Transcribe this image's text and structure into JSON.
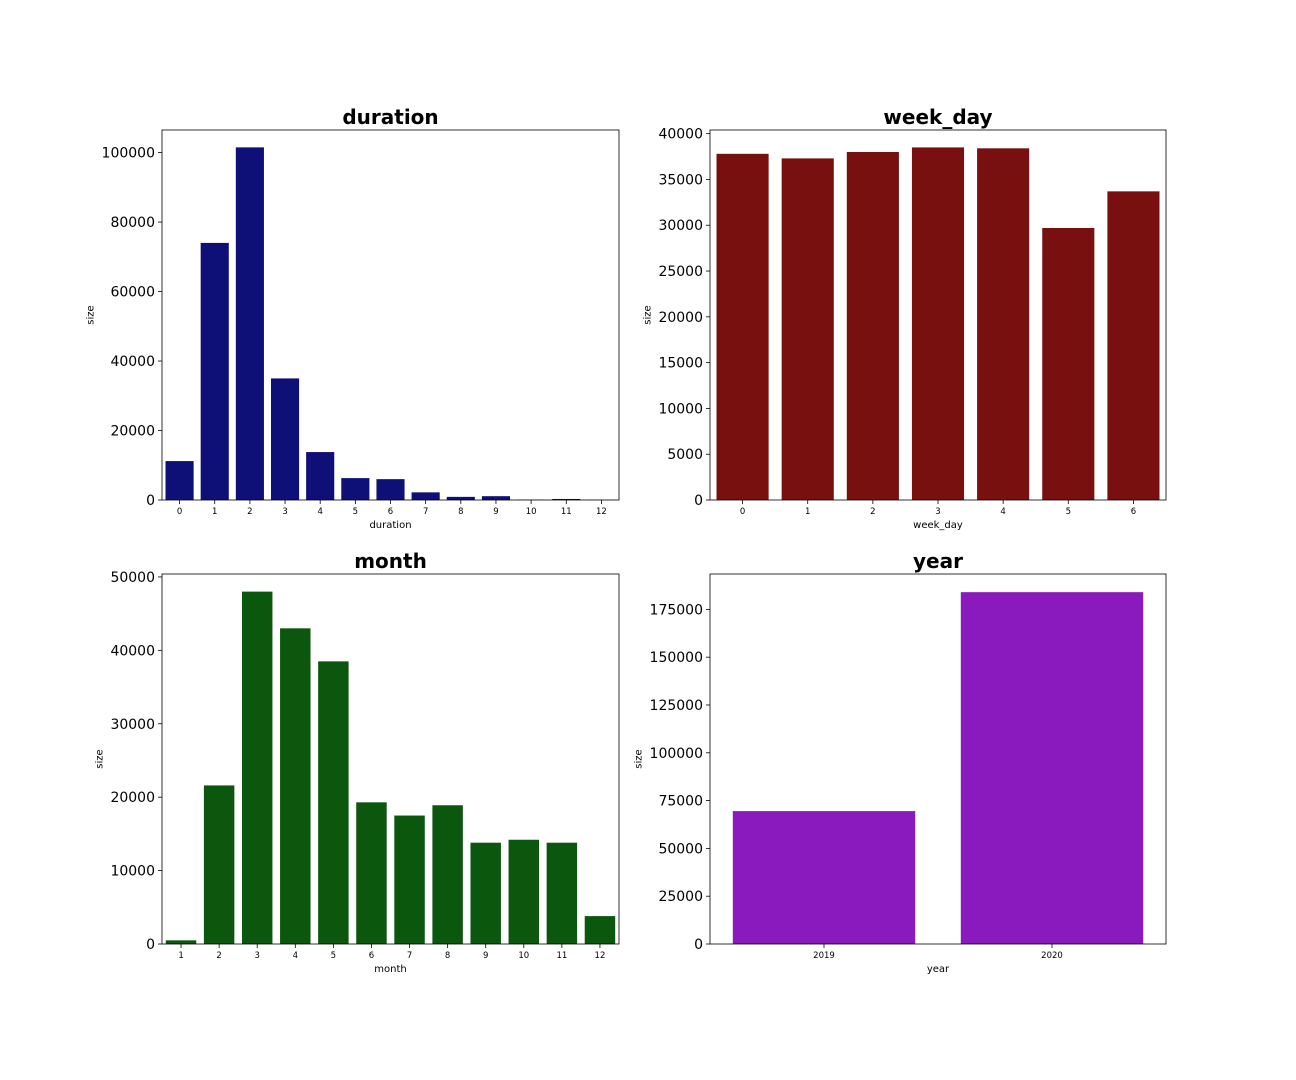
{
  "chart_data": [
    {
      "type": "bar",
      "title": "duration",
      "xlabel": "duration",
      "ylabel": "size",
      "color": "#0f0f78",
      "categories": [
        "0",
        "1",
        "2",
        "3",
        "4",
        "5",
        "6",
        "7",
        "8",
        "9",
        "10",
        "11",
        "12"
      ],
      "values": [
        11200,
        74000,
        101500,
        35000,
        13800,
        6300,
        6000,
        2200,
        900,
        1100,
        80,
        300,
        60
      ],
      "ylim": [
        0,
        106500
      ],
      "yticks": [
        0,
        20000,
        40000,
        60000,
        80000,
        100000
      ],
      "grid": false
    },
    {
      "type": "bar",
      "title": "week_day",
      "xlabel": "week_day",
      "ylabel": "size",
      "color": "#781010",
      "categories": [
        "0",
        "1",
        "2",
        "3",
        "4",
        "5",
        "6"
      ],
      "values": [
        37800,
        37300,
        38000,
        38500,
        38400,
        29700,
        33700
      ],
      "ylim": [
        0,
        40400
      ],
      "yticks": [
        0,
        5000,
        10000,
        15000,
        20000,
        25000,
        30000,
        35000,
        40000
      ],
      "grid": false
    },
    {
      "type": "bar",
      "title": "month",
      "xlabel": "month",
      "ylabel": "size",
      "color": "#0c570e",
      "categories": [
        "1",
        "2",
        "3",
        "4",
        "5",
        "6",
        "7",
        "8",
        "9",
        "10",
        "11",
        "12"
      ],
      "values": [
        500,
        21600,
        48000,
        43000,
        38500,
        19300,
        17500,
        18900,
        13800,
        14200,
        13800,
        3800
      ],
      "ylim": [
        0,
        50400
      ],
      "yticks": [
        0,
        10000,
        20000,
        30000,
        40000,
        50000
      ],
      "grid": false
    },
    {
      "type": "bar",
      "title": "year",
      "xlabel": "year",
      "ylabel": "size",
      "color": "#8a1abd",
      "categories": [
        "2019",
        "2020"
      ],
      "values": [
        69500,
        184000
      ],
      "ylim": [
        0,
        193500
      ],
      "yticks": [
        0,
        25000,
        50000,
        75000,
        100000,
        125000,
        150000,
        175000
      ],
      "grid": false
    }
  ]
}
